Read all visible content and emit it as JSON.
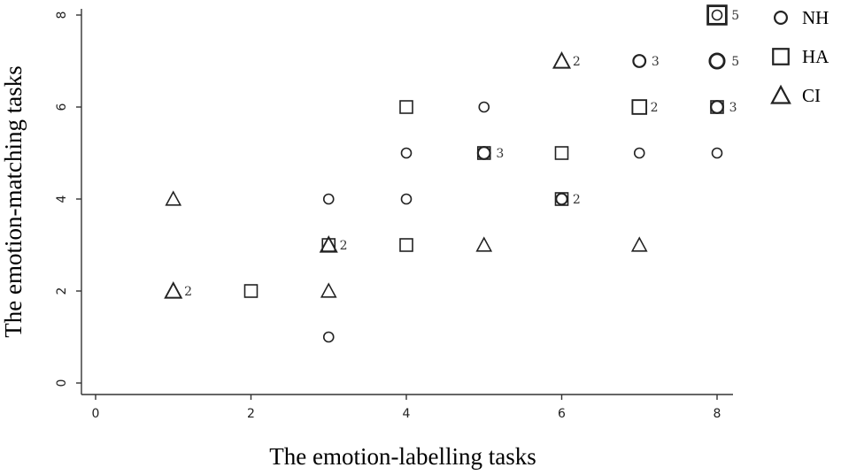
{
  "chart_data": {
    "type": "scatter",
    "xlabel": "The emotion-labelling tasks",
    "ylabel": "The emotion-matching tasks",
    "xlim": [
      0,
      8
    ],
    "ylim": [
      0,
      8
    ],
    "xticks": [
      "0",
      "2",
      "4",
      "6",
      "8"
    ],
    "yticks": [
      "0",
      "2",
      "4",
      "6",
      "8"
    ],
    "grid": false,
    "legend_position": "top-right",
    "series": [
      {
        "name": "NH",
        "marker": "circle",
        "points": [
          {
            "x": 3,
            "y": 1,
            "count": ""
          },
          {
            "x": 3,
            "y": 4,
            "count": ""
          },
          {
            "x": 4,
            "y": 4,
            "count": ""
          },
          {
            "x": 4,
            "y": 5,
            "count": ""
          },
          {
            "x": 5,
            "y": 5,
            "count": "3"
          },
          {
            "x": 5,
            "y": 6,
            "count": ""
          },
          {
            "x": 6,
            "y": 4,
            "count": "2"
          },
          {
            "x": 7,
            "y": 5,
            "count": ""
          },
          {
            "x": 7,
            "y": 7,
            "count": "3"
          },
          {
            "x": 8,
            "y": 5,
            "count": ""
          },
          {
            "x": 8,
            "y": 6,
            "count": "3"
          },
          {
            "x": 8,
            "y": 7,
            "count": "5"
          },
          {
            "x": 8,
            "y": 8,
            "count": ""
          }
        ]
      },
      {
        "name": "HA",
        "marker": "square",
        "points": [
          {
            "x": 2,
            "y": 2,
            "count": ""
          },
          {
            "x": 3,
            "y": 3,
            "count": ""
          },
          {
            "x": 4,
            "y": 3,
            "count": ""
          },
          {
            "x": 4,
            "y": 6,
            "count": ""
          },
          {
            "x": 5,
            "y": 5,
            "count": ""
          },
          {
            "x": 6,
            "y": 4,
            "count": ""
          },
          {
            "x": 6,
            "y": 5,
            "count": ""
          },
          {
            "x": 7,
            "y": 6,
            "count": "2"
          },
          {
            "x": 8,
            "y": 6,
            "count": ""
          },
          {
            "x": 8,
            "y": 8,
            "count": "5"
          }
        ]
      },
      {
        "name": "CI",
        "marker": "triangle",
        "points": [
          {
            "x": 1,
            "y": 2,
            "count": "2"
          },
          {
            "x": 1,
            "y": 4,
            "count": ""
          },
          {
            "x": 3,
            "y": 2,
            "count": ""
          },
          {
            "x": 3,
            "y": 3,
            "count": "2"
          },
          {
            "x": 5,
            "y": 3,
            "count": ""
          },
          {
            "x": 6,
            "y": 7,
            "count": "2"
          },
          {
            "x": 7,
            "y": 3,
            "count": ""
          }
        ]
      }
    ]
  }
}
